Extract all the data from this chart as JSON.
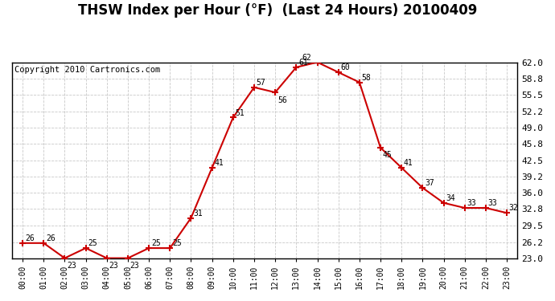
{
  "title": "THSW Index per Hour (°F)  (Last 24 Hours) 20100409",
  "copyright": "Copyright 2010 Cartronics.com",
  "hours": [
    "00:00",
    "01:00",
    "02:00",
    "03:00",
    "04:00",
    "05:00",
    "06:00",
    "07:00",
    "08:00",
    "09:00",
    "10:00",
    "11:00",
    "12:00",
    "13:00",
    "14:00",
    "15:00",
    "16:00",
    "17:00",
    "18:00",
    "19:00",
    "20:00",
    "21:00",
    "22:00",
    "23:00"
  ],
  "values": [
    26,
    26,
    23,
    25,
    23,
    23,
    25,
    25,
    31,
    41,
    51,
    57,
    56,
    61,
    62,
    60,
    58,
    45,
    41,
    37,
    34,
    33,
    33,
    32
  ],
  "ylim_min": 23.0,
  "ylim_max": 62.0,
  "yticks": [
    23.0,
    26.2,
    29.5,
    32.8,
    36.0,
    39.2,
    42.5,
    45.8,
    49.0,
    52.2,
    55.5,
    58.8,
    62.0
  ],
  "line_color": "#cc0000",
  "bg_color": "#ffffff",
  "grid_color": "#bbbbbb",
  "title_fontsize": 12,
  "copyright_fontsize": 7.5
}
